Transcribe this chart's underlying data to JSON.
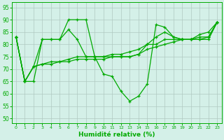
{
  "title": "",
  "xlabel": "Humidité relative (%)",
  "ylabel": "",
  "bg_color": "#d4f0e8",
  "plot_bg_color": "#d4f0e8",
  "grid_color": "#b0c8c0",
  "line_color": "#00aa00",
  "xlim": [
    -0.5,
    23.5
  ],
  "ylim": [
    48,
    97
  ],
  "yticks": [
    50,
    55,
    60,
    65,
    70,
    75,
    80,
    85,
    90,
    95
  ],
  "xticks": [
    0,
    1,
    2,
    3,
    4,
    5,
    6,
    7,
    8,
    9,
    10,
    11,
    12,
    13,
    14,
    15,
    16,
    17,
    18,
    19,
    20,
    21,
    22,
    23
  ],
  "line1": [
    83,
    65,
    65,
    82,
    82,
    82,
    90,
    90,
    90,
    75,
    68,
    67,
    61,
    57,
    59,
    64,
    88,
    87,
    83,
    82,
    82,
    84,
    85,
    89
  ],
  "line2": [
    83,
    65,
    71,
    82,
    82,
    82,
    86,
    82,
    75,
    75,
    75,
    75,
    75,
    75,
    76,
    80,
    83,
    85,
    83,
    82,
    82,
    83,
    83,
    89
  ],
  "line3": [
    83,
    65,
    71,
    72,
    73,
    73,
    74,
    75,
    75,
    75,
    75,
    76,
    76,
    77,
    78,
    80,
    80,
    82,
    82,
    82,
    82,
    82,
    83,
    89
  ],
  "line4": [
    83,
    65,
    71,
    72,
    72,
    73,
    73,
    74,
    74,
    74,
    74,
    75,
    75,
    75,
    76,
    78,
    79,
    80,
    81,
    82,
    82,
    82,
    82,
    89
  ]
}
